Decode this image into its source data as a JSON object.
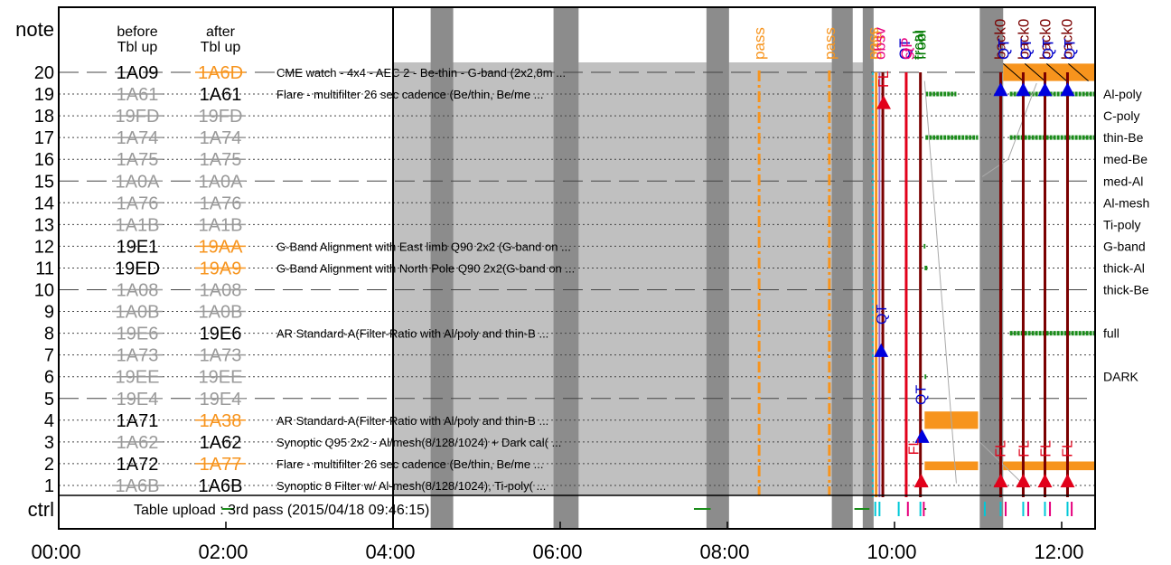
{
  "chart_data": {
    "type": "timeline",
    "title": "",
    "row_header": {
      "label": "note",
      "before": "before\nTbl up",
      "after": "after\nTbl up"
    },
    "ctrl_label": "ctrl",
    "upload_text": "Table upload : 3rd pass (2015/04/18 09:46:15)",
    "x_range_hours": [
      0,
      12.4
    ],
    "x_ticks": [
      "00:00",
      "02:00",
      "04:00",
      "06:00",
      "08:00",
      "10:00",
      "12:00"
    ],
    "x_tick_hours": [
      0,
      2,
      4,
      6,
      8,
      10,
      12
    ],
    "table_region_hours": [
      4,
      9.75
    ],
    "rows": [
      {
        "n": 20,
        "before": "1A09",
        "before_state": "active",
        "after": "1A6D",
        "after_state": "changed",
        "desc": "CME watch - 4x4 - AEC 2 - Be-thin - G-band (2x2,8m ...",
        "dashed": true
      },
      {
        "n": 19,
        "before": "1A61",
        "before_state": "off",
        "after": "1A61",
        "after_state": "active",
        "desc": "Flare - multifilter 26 sec cadence (Be/thin, Be/me ...",
        "dashed": false
      },
      {
        "n": 18,
        "before": "19FD",
        "before_state": "off",
        "after": "19FD",
        "after_state": "off",
        "desc": "",
        "dashed": false
      },
      {
        "n": 17,
        "before": "1A74",
        "before_state": "off",
        "after": "1A74",
        "after_state": "off",
        "desc": "",
        "dashed": false
      },
      {
        "n": 16,
        "before": "1A75",
        "before_state": "off",
        "after": "1A75",
        "after_state": "off",
        "desc": "",
        "dashed": false
      },
      {
        "n": 15,
        "before": "1A0A",
        "before_state": "off",
        "after": "1A0A",
        "after_state": "off",
        "desc": "",
        "dashed": true
      },
      {
        "n": 14,
        "before": "1A76",
        "before_state": "off",
        "after": "1A76",
        "after_state": "off",
        "desc": "",
        "dashed": false
      },
      {
        "n": 13,
        "before": "1A1B",
        "before_state": "off",
        "after": "1A1B",
        "after_state": "off",
        "desc": "",
        "dashed": false
      },
      {
        "n": 12,
        "before": "19E1",
        "before_state": "active",
        "after": "19AA",
        "after_state": "changed",
        "desc": "G-Band Alignment with East limb Q90 2x2 (G-band on ...",
        "dashed": false
      },
      {
        "n": 11,
        "before": "19ED",
        "before_state": "active",
        "after": "19A9",
        "after_state": "changed",
        "desc": "G-Band Alignment with North Pole Q90 2x2(G-band on ...",
        "dashed": false
      },
      {
        "n": 10,
        "before": "1A08",
        "before_state": "off",
        "after": "1A08",
        "after_state": "off",
        "desc": "",
        "dashed": true
      },
      {
        "n": 9,
        "before": "1A0B",
        "before_state": "off",
        "after": "1A0B",
        "after_state": "off",
        "desc": "",
        "dashed": false
      },
      {
        "n": 8,
        "before": "19E6",
        "before_state": "off",
        "after": "19E6",
        "after_state": "active",
        "desc": "AR Standard-A(Filter-Ratio with Al/poly and thin-B ...",
        "dashed": false
      },
      {
        "n": 7,
        "before": "1A73",
        "before_state": "off",
        "after": "1A73",
        "after_state": "off",
        "desc": "",
        "dashed": false
      },
      {
        "n": 6,
        "before": "19EE",
        "before_state": "off",
        "after": "19EE",
        "after_state": "off",
        "desc": "",
        "dashed": false
      },
      {
        "n": 5,
        "before": "19E4",
        "before_state": "off",
        "after": "19E4",
        "after_state": "off",
        "desc": "",
        "dashed": true
      },
      {
        "n": 4,
        "before": "1A71",
        "before_state": "active",
        "after": "1A38",
        "after_state": "changed",
        "desc": "AR Standard-A(Filter-Ratio with Al/poly and thin-B ...",
        "dashed": false
      },
      {
        "n": 3,
        "before": "1A62",
        "before_state": "off",
        "after": "1A62",
        "after_state": "active",
        "desc": "Synoptic Q95 2x2 - Al/mesh(8/128/1024) + Dark cal( ...",
        "dashed": false
      },
      {
        "n": 2,
        "before": "1A72",
        "before_state": "active",
        "after": "1A77",
        "after_state": "changed",
        "desc": "Flare - multifilter 26 sec cadence (Be/thin, Be/me ...",
        "dashed": false
      },
      {
        "n": 1,
        "before": "1A6B",
        "before_state": "off",
        "after": "1A6B",
        "after_state": "active",
        "desc": "Synoptic 8 Filter w/ Al-mesh(8/128/1024), Ti-poly( ...",
        "dashed": false
      }
    ],
    "filters": [
      {
        "label": "Al-poly",
        "row": 19
      },
      {
        "label": "C-poly",
        "row": 18
      },
      {
        "label": "thin-Be",
        "row": 17
      },
      {
        "label": "med-Be",
        "row": 16
      },
      {
        "label": "med-Al",
        "row": 15
      },
      {
        "label": "Al-mesh",
        "row": 14
      },
      {
        "label": "Ti-poly",
        "row": 13
      },
      {
        "label": "G-band",
        "row": 12
      },
      {
        "label": "thick-Al",
        "row": 11
      },
      {
        "label": "thick-Be",
        "row": 10
      },
      {
        "label": "full",
        "row": 8
      },
      {
        "label": "DARK",
        "row": 6
      }
    ],
    "pass_bands_hours": [
      [
        4.45,
        4.72
      ],
      [
        5.92,
        6.22
      ],
      [
        7.75,
        8.02
      ],
      [
        9.25,
        9.5
      ],
      [
        9.62,
        9.75
      ],
      [
        11.02,
        11.3
      ]
    ],
    "orange_dashdot_hours": [
      8.38,
      9.22
    ],
    "top_event_labels": [
      {
        "text": "pass",
        "h": 8.38,
        "color": "#f7941d"
      },
      {
        "text": "pass",
        "h": 9.22,
        "color": "#f7941d"
      },
      {
        "text": "pass",
        "h": 9.74,
        "color": "#f7941d"
      },
      {
        "text": "stop",
        "h": 9.78,
        "color": "#f7941d"
      },
      {
        "text": "obsv",
        "h": 9.82,
        "color": "#e6007e"
      },
      {
        "text": "QT",
        "h": 10.12,
        "color": "#0000cc"
      },
      {
        "text": "OP",
        "h": 10.14,
        "color": "#e6007e"
      },
      {
        "text": "st",
        "h": 10.17,
        "color": "#e6007e"
      },
      {
        "text": "trcal",
        "h": 10.28,
        "color": "#007a00"
      },
      {
        "text": "frobl",
        "h": 10.31,
        "color": "#007a00"
      },
      {
        "text": "back0",
        "h": 11.26,
        "color": "#7a0000"
      },
      {
        "text": "QT",
        "h": 11.3,
        "color": "#0000cc"
      },
      {
        "text": "back0",
        "h": 11.54,
        "color": "#7a0000"
      },
      {
        "text": "QT",
        "h": 11.57,
        "color": "#0000cc"
      },
      {
        "text": "back0",
        "h": 11.8,
        "color": "#7a0000"
      },
      {
        "text": "QT",
        "h": 11.83,
        "color": "#0000cc"
      },
      {
        "text": "back0",
        "h": 12.06,
        "color": "#7a0000"
      },
      {
        "text": "QT",
        "h": 12.09,
        "color": "#0000cc"
      }
    ],
    "inline_labels": [
      {
        "text": "FL",
        "h": 9.86,
        "row": 19.3,
        "color": "#e2001a"
      },
      {
        "text": "QT",
        "h": 9.84,
        "row": 8.4,
        "color": "#0000cc"
      },
      {
        "text": "QT",
        "h": 10.31,
        "row": 4.7,
        "color": "#0000cc"
      },
      {
        "text": "FL",
        "h": 10.22,
        "row": 2.4,
        "color": "#e2001a"
      },
      {
        "text": "FL",
        "h": 11.26,
        "row": 2.3,
        "color": "#e2001a"
      },
      {
        "text": "FL",
        "h": 11.54,
        "row": 2.3,
        "color": "#e2001a"
      },
      {
        "text": "FL",
        "h": 11.8,
        "row": 2.3,
        "color": "#e2001a"
      },
      {
        "text": "FL",
        "h": 12.06,
        "row": 2.3,
        "color": "#e2001a"
      }
    ],
    "vlines": [
      {
        "h": 9.78,
        "color": "#f7941d",
        "w": 3
      },
      {
        "h": 9.82,
        "color": "#9966cc",
        "w": 2
      },
      {
        "h": 9.86,
        "color": "#7a0000",
        "w": 3
      },
      {
        "h": 10.14,
        "color": "#e2001a",
        "w": 3
      },
      {
        "h": 10.31,
        "color": "#7a0000",
        "w": 3
      },
      {
        "h": 11.27,
        "color": "#7a0000",
        "w": 3
      },
      {
        "h": 11.54,
        "color": "#7a0000",
        "w": 3
      },
      {
        "h": 11.8,
        "color": "#7a0000",
        "w": 3
      },
      {
        "h": 12.07,
        "color": "#7a0000",
        "w": 3
      }
    ],
    "triangles": [
      {
        "h": 9.87,
        "row": 18.6,
        "color": "#e2001a"
      },
      {
        "h": 9.84,
        "row": 7.2,
        "color": "#0000dd"
      },
      {
        "h": 10.33,
        "row": 3.25,
        "color": "#0000dd"
      },
      {
        "h": 10.32,
        "row": 1.2,
        "color": "#e2001a"
      },
      {
        "h": 11.27,
        "row": 19.2,
        "color": "#0000dd"
      },
      {
        "h": 11.54,
        "row": 19.2,
        "color": "#0000dd"
      },
      {
        "h": 11.8,
        "row": 19.2,
        "color": "#0000dd"
      },
      {
        "h": 12.07,
        "row": 19.2,
        "color": "#0000dd"
      },
      {
        "h": 11.27,
        "row": 1.2,
        "color": "#e2001a"
      },
      {
        "h": 11.54,
        "row": 1.2,
        "color": "#e2001a"
      },
      {
        "h": 11.8,
        "row": 1.2,
        "color": "#e2001a"
      },
      {
        "h": 12.07,
        "row": 1.2,
        "color": "#e2001a"
      }
    ],
    "orange_blocks": [
      {
        "h0": 10.36,
        "h1": 11.0,
        "row0": 3.6,
        "row1": 4.4
      },
      {
        "h0": 10.36,
        "h1": 11.0,
        "row0": 1.7,
        "row1": 2.1
      },
      {
        "h0": 11.3,
        "h1": 12.4,
        "row0": 1.7,
        "row1": 2.1
      },
      {
        "h0": 11.3,
        "h1": 12.4,
        "row0": 19.6,
        "row1": 20.4
      }
    ],
    "green_dashes": [
      {
        "h0": 10.37,
        "h1": 10.74,
        "row": 19
      },
      {
        "h0": 11.38,
        "h1": 12.4,
        "row": 19
      },
      {
        "h0": 10.37,
        "h1": 11.0,
        "row": 17
      },
      {
        "h0": 11.38,
        "h1": 12.4,
        "row": 17
      },
      {
        "h0": 10.35,
        "h1": 10.37,
        "row": 12
      },
      {
        "h0": 10.36,
        "h1": 10.4,
        "row": 11
      },
      {
        "h0": 11.38,
        "h1": 12.4,
        "row": 8
      },
      {
        "h0": 10.36,
        "h1": 10.38,
        "row": 6
      }
    ],
    "ctrl_green_marks": [
      [
        1.95,
        2.1
      ],
      [
        7.6,
        7.8
      ],
      [
        9.52,
        9.7
      ],
      [
        10.35,
        10.38
      ]
    ],
    "ctrl_ticks": [
      {
        "h": 9.77,
        "color": "#00c8d8"
      },
      {
        "h": 9.82,
        "color": "#00c8d8"
      },
      {
        "h": 10.05,
        "color": "#00c8d8"
      },
      {
        "h": 10.16,
        "color": "#e6007e"
      },
      {
        "h": 10.31,
        "color": "#00c8d8"
      },
      {
        "h": 10.35,
        "color": "#e6007e"
      },
      {
        "h": 11.08,
        "color": "#00c8d8"
      },
      {
        "h": 11.27,
        "color": "#00c8d8"
      },
      {
        "h": 11.33,
        "color": "#e6007e"
      },
      {
        "h": 11.54,
        "color": "#00c8d8"
      },
      {
        "h": 11.6,
        "color": "#e6007e"
      },
      {
        "h": 11.8,
        "color": "#00c8d8"
      },
      {
        "h": 11.86,
        "color": "#e6007e"
      },
      {
        "h": 12.07,
        "color": "#00c8d8"
      },
      {
        "h": 12.12,
        "color": "#e6007e"
      }
    ],
    "colors": {
      "active_text": "#000000",
      "off_text": "#9a9a9a",
      "changed_text": "#f7941d",
      "table_bg": "#c0c0c0",
      "pass_band": "#8c8c8c",
      "grid": "#444444"
    }
  }
}
